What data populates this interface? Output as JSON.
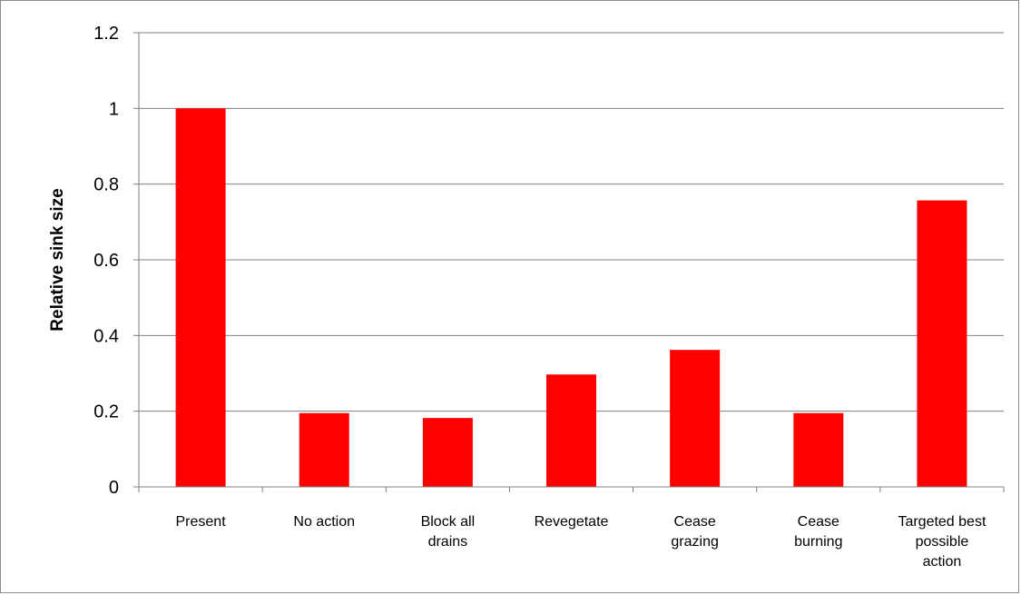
{
  "chart_data": {
    "type": "bar",
    "categories": [
      [
        "Present"
      ],
      [
        "No action"
      ],
      [
        "Block all",
        "drains"
      ],
      [
        "Revegetate"
      ],
      [
        "Cease",
        "grazing"
      ],
      [
        "Cease",
        "burning"
      ],
      [
        "Targeted best",
        "possible",
        "action"
      ]
    ],
    "values": [
      1.0,
      0.195,
      0.182,
      0.297,
      0.362,
      0.195,
      0.757
    ],
    "title": "",
    "xlabel": "",
    "ylabel": "Relative sink size",
    "ylim": [
      0,
      1.2
    ],
    "yticks": [
      "0",
      "0.2",
      "0.4",
      "0.6",
      "0.8",
      "1",
      "1.2"
    ],
    "grid": true,
    "legend": "none",
    "bar_color": "#ff0000",
    "grid_color": "#808080"
  }
}
